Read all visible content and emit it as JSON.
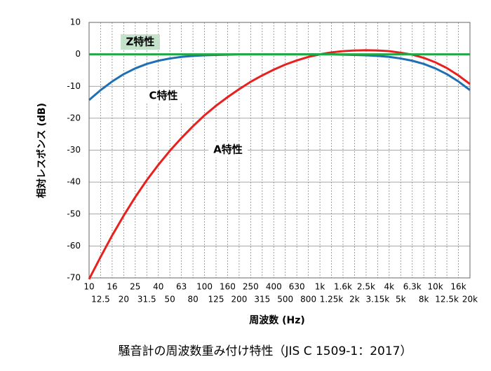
{
  "chart_data": {
    "type": "line",
    "title": "騒音計の周波数重み付け特性（JIS C 1509-1：2017）",
    "x_label": "周波数 (Hz)",
    "y_label": "相対レスポンス (dB)",
    "categories": [
      "10",
      "12.5",
      "16",
      "20",
      "25",
      "31.5",
      "40",
      "50",
      "63",
      "80",
      "100",
      "125",
      "160",
      "200",
      "250",
      "315",
      "400",
      "500",
      "630",
      "800",
      "1k",
      "1.25k",
      "1.6k",
      "2k",
      "2.5k",
      "3.15k",
      "4k",
      "5k",
      "6.3k",
      "8k",
      "10k",
      "12.5k",
      "16k",
      "20k"
    ],
    "series": [
      {
        "name": "A特性",
        "color": "#e8201e",
        "values": [
          -70.4,
          -63.4,
          -56.7,
          -50.5,
          -44.7,
          -39.4,
          -34.6,
          -30.2,
          -26.2,
          -22.5,
          -19.1,
          -16.1,
          -13.4,
          -10.9,
          -8.6,
          -6.6,
          -4.8,
          -3.2,
          -1.9,
          -0.8,
          0,
          0.6,
          1.0,
          1.2,
          1.3,
          1.2,
          1.0,
          0.5,
          -0.1,
          -1.1,
          -2.5,
          -4.3,
          -6.6,
          -9.3
        ]
      },
      {
        "name": "C特性",
        "color": "#1f6fb5",
        "values": [
          -14.3,
          -11.2,
          -8.5,
          -6.2,
          -4.4,
          -3.0,
          -2.0,
          -1.3,
          -0.8,
          -0.5,
          -0.3,
          -0.2,
          -0.1,
          0,
          0,
          0,
          0,
          0,
          0,
          0,
          0,
          0,
          -0.1,
          -0.2,
          -0.3,
          -0.5,
          -0.8,
          -1.3,
          -2.0,
          -3.0,
          -4.4,
          -6.2,
          -8.5,
          -11.2
        ]
      },
      {
        "name": "Z特性",
        "color": "#22a845",
        "values": [
          0,
          0,
          0,
          0,
          0,
          0,
          0,
          0,
          0,
          0,
          0,
          0,
          0,
          0,
          0,
          0,
          0,
          0,
          0,
          0,
          0,
          0,
          0,
          0,
          0,
          0,
          0,
          0,
          0,
          0,
          0,
          0,
          0,
          0
        ]
      }
    ],
    "ylim": [
      -70,
      10
    ],
    "yticks": [
      -70,
      -60,
      -50,
      -40,
      -30,
      -20,
      -10,
      0,
      10
    ],
    "grid": true
  }
}
